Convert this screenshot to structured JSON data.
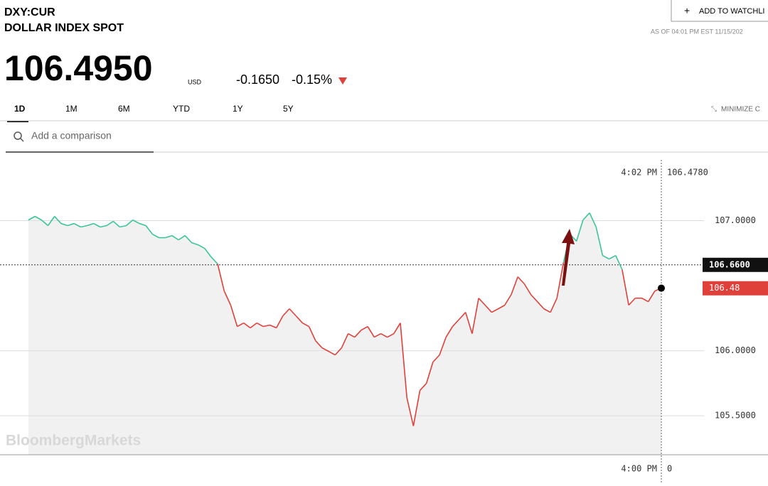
{
  "header": {
    "symbol": "DXY:CUR",
    "name": "DOLLAR INDEX SPOT",
    "watchlist": "ADD TO WATCHLI",
    "as_of": "AS OF 04:01 PM EST 11/15/202",
    "price": "106.4950",
    "currency": "USD",
    "change": "-0.1650",
    "change_pct": "-0.15%"
  },
  "tabs": [
    "1D",
    "1M",
    "6M",
    "YTD",
    "1Y",
    "5Y"
  ],
  "minimize": "MINIMIZE C",
  "comparison": "Add a comparison",
  "chart_data": {
    "type": "line",
    "values": [
      107.005,
      107.033,
      107.005,
      106.962,
      107.033,
      106.978,
      106.962,
      106.978,
      106.951,
      106.962,
      106.978,
      106.951,
      106.962,
      106.995,
      106.951,
      106.962,
      107.005,
      106.978,
      106.962,
      106.896,
      106.869,
      106.869,
      106.885,
      106.852,
      106.885,
      106.831,
      106.814,
      106.787,
      106.721,
      106.667,
      106.459,
      106.35,
      106.186,
      106.213,
      106.175,
      106.213,
      106.186,
      106.197,
      106.175,
      106.268,
      106.322,
      106.268,
      106.213,
      106.186,
      106.077,
      106.022,
      105.995,
      105.967,
      106.022,
      106.131,
      106.104,
      106.158,
      106.186,
      106.104,
      106.131,
      106.104,
      106.131,
      106.213,
      105.639,
      105.421,
      105.694,
      105.749,
      105.913,
      105.967,
      106.104,
      106.186,
      106.24,
      106.295,
      106.131,
      106.404,
      106.35,
      106.295,
      106.322,
      106.35,
      106.432,
      106.568,
      106.514,
      106.432,
      106.377,
      106.322,
      106.295,
      106.404,
      106.678,
      106.896,
      106.842,
      107.005,
      107.06,
      106.951,
      106.732,
      106.705,
      106.732,
      106.623,
      106.35,
      106.404,
      106.404,
      106.377,
      106.459,
      106.481
    ],
    "ylim": [
      105.2,
      107.44
    ],
    "yticks": [
      {
        "value": 107,
        "label": "107.0000"
      },
      {
        "value": 106,
        "label": "106.0000"
      },
      {
        "value": 105.5,
        "label": "105.5000"
      }
    ],
    "grid": true,
    "up_color": "#3cc49a",
    "down_color": "#e0403a",
    "previous_close": {
      "value": 106.66,
      "label": "106.6600"
    },
    "last": {
      "value": 106.48,
      "label": "106.48"
    },
    "crosshair_time": "4:02 PM",
    "crosshair_value": "106.4780",
    "axis_time": "4:00 PM",
    "axis_value": 0,
    "watermark": "BloombergMarkets"
  }
}
